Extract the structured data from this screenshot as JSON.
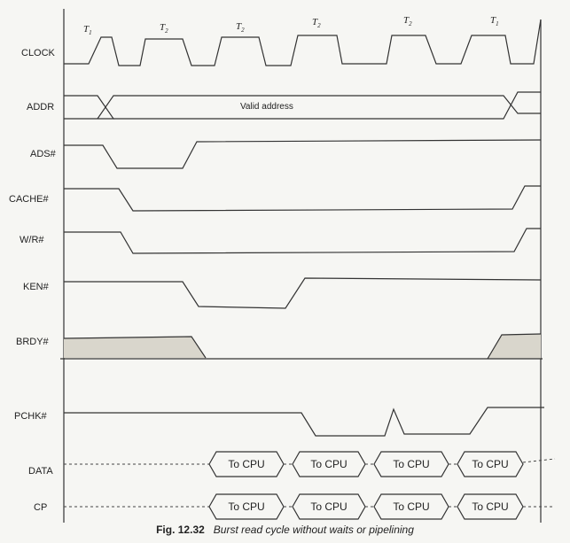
{
  "states": [
    {
      "letter": "T",
      "sub": "1"
    },
    {
      "letter": "T",
      "sub": "2"
    },
    {
      "letter": "T",
      "sub": "2"
    },
    {
      "letter": "T",
      "sub": "2"
    },
    {
      "letter": "T",
      "sub": "2"
    },
    {
      "letter": "T",
      "sub": "1"
    }
  ],
  "signals": {
    "clock": "CLOCK",
    "addr": "ADDR",
    "ads": "ADS#",
    "cache": "CACHE#",
    "wr": "W/R#",
    "ken": "KEN#",
    "brdy": "BRDY#",
    "pchk": "PCHK#",
    "data": "DATA",
    "cp": "CP"
  },
  "addr_text": "Valid address",
  "bus_label": "To CPU",
  "caption": {
    "number": "Fig. 12.32",
    "text": "Burst read cycle without waits or pipelining"
  }
}
